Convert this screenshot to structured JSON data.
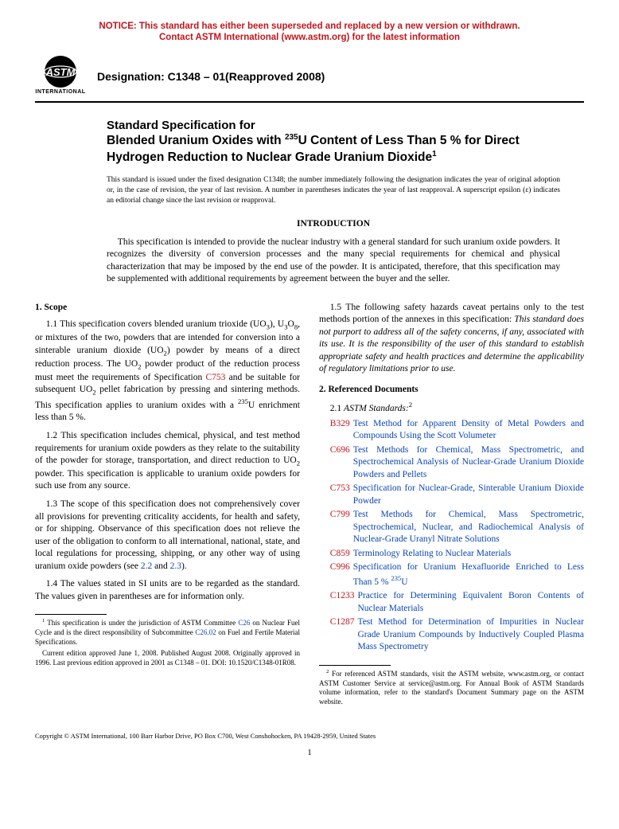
{
  "notice": {
    "line1": "NOTICE: This standard has either been superseded and replaced by a new version or withdrawn.",
    "line2": "Contact ASTM International (www.astm.org) for the latest information",
    "color": "#c3151b"
  },
  "logo": {
    "text": "INTERNATIONAL"
  },
  "designation": "Designation: C1348 – 01(Reapproved 2008)",
  "title": {
    "pre": "Standard Specification for",
    "main_html": "Blended Uranium Oxides with <sup>235</sup>U Content of Less Than 5 % for Direct Hydrogen Reduction to Nuclear Grade Uranium Dioxide<sup>1</sup>"
  },
  "issue_note_html": "This standard is issued under the fixed designation C1348; the number immediately following the designation indicates the year of original adoption or, in the case of revision, the year of last revision. A number in parentheses indicates the year of last reapproval. A superscript epsilon (&epsilon;) indicates an editorial change since the last revision or reapproval.",
  "intro": {
    "heading": "INTRODUCTION",
    "text": "This specification is intended to provide the nuclear industry with a general standard for such uranium oxide powders. It recognizes the diversity of conversion processes and the many special requirements for chemical and physical characterization that may be imposed by the end use of the powder. It is anticipated, therefore, that this specification may be supplemented with additional requirements by agreement between the buyer and the seller."
  },
  "scope": {
    "heading": "1. Scope",
    "p11_html": "1.1 This specification covers blended uranium trioxide (UO<sub>3</sub>), U<sub>3</sub>O<sub>8</sub>, or mixtures of the two, powders that are intended for conversion into a sinterable uranium dioxide (UO<sub>2</sub>) powder by means of a direct reduction process. The UO<sub>2</sub> powder product of the reduction process must meet the requirements of Specification <span class=\"ref-link\">C753</span> and be suitable for subsequent UO<sub>2</sub> pellet fabrication by pressing and sintering methods. This specification applies to uranium oxides with a <sup>235</sup>U enrichment less than 5 %.",
    "p12_html": "1.2 This specification includes chemical, physical, and test method requirements for uranium oxide powders as they relate to the suitability of the powder for storage, transportation, and direct reduction to UO<sub>2</sub> powder. This specification is applicable to uranium oxide powders for such use from any source.",
    "p13_html": "1.3 The scope of this specification does not comprehensively cover all provisions for preventing criticality accidents, for health and safety, or for shipping. Observance of this specification does not relieve the user of the obligation to conform to all international, national, state, and local regulations for processing, shipping, or any other way of using uranium oxide powders (see <span class=\"link\">2.2</span> and <span class=\"link\">2.3</span>).",
    "p14": "1.4 The values stated in SI units are to be regarded as the standard. The values given in parentheses are for information only.",
    "p15_html": "1.5 The following safety hazards caveat pertains only to the test methods portion of the annexes in this specification: <span class=\"italic\">This standard does not purport to address all of the safety concerns, if any, associated with its use. It is the responsibility of the user of this standard to establish appropriate safety and health practices and determine the applicability of regulatory limitations prior to use.</span>"
  },
  "refs": {
    "heading": "2. Referenced Documents",
    "sub_html": "2.1 <span class=\"italic\">ASTM Standards:</span><sup>2</sup>",
    "items": [
      {
        "code": "B329",
        "title": "Test Method for Apparent Density of Metal Powders and Compounds Using the Scott Volumeter"
      },
      {
        "code": "C696",
        "title": "Test Methods for Chemical, Mass Spectrometric, and Spectrochemical Analysis of Nuclear-Grade Uranium Dioxide Powders and Pellets"
      },
      {
        "code": "C753",
        "title": "Specification for Nuclear-Grade, Sinterable Uranium Dioxide Powder"
      },
      {
        "code": "C799",
        "title": "Test Methods for Chemical, Mass Spectrometric, Spectrochemical, Nuclear, and Radiochemical Analysis of Nuclear-Grade Uranyl Nitrate Solutions"
      },
      {
        "code": "C859",
        "title": "Terminology Relating to Nuclear Materials"
      },
      {
        "code": "C996",
        "title_html": "Specification for Uranium Hexafluoride Enriched to Less Than 5 % <sup>235</sup>U"
      },
      {
        "code": "C1233",
        "title": "Practice for Determining Equivalent Boron Contents of Nuclear Materials"
      },
      {
        "code": "C1287",
        "title": "Test Method for Determination of Impurities in Nuclear Grade Uranium Compounds by Inductively Coupled Plasma Mass Spectrometry"
      }
    ]
  },
  "footnotes": {
    "f1_html": "<sup>1</sup> This specification is under the jurisdiction of ASTM Committee <span class=\"link\">C26</span> on Nuclear Fuel Cycle and is the direct responsibility of Subcommittee <span class=\"link\">C26.02</span> on Fuel and Fertile Material Specifications.",
    "f1b": "Current edition approved June 1, 2008. Published August 2008. Originally approved in 1996. Last previous edition approved in 2001 as C1348 – 01. DOI: 10.1520/C1348-01R08.",
    "f2_html": "<sup>2</sup> For referenced ASTM standards, visit the ASTM website, www.astm.org, or contact ASTM Customer Service at service@astm.org. For <span class=\"italic\">Annual Book of ASTM Standards</span> volume information, refer to the standard's Document Summary page on the ASTM website."
  },
  "copyright": "Copyright © ASTM International, 100 Barr Harbor Drive, PO Box C700, West Conshohocken, PA 19428-2959, United States",
  "page_number": "1",
  "colors": {
    "notice": "#c3151b",
    "link": "#0a45b5",
    "ref": "#c3151b"
  }
}
